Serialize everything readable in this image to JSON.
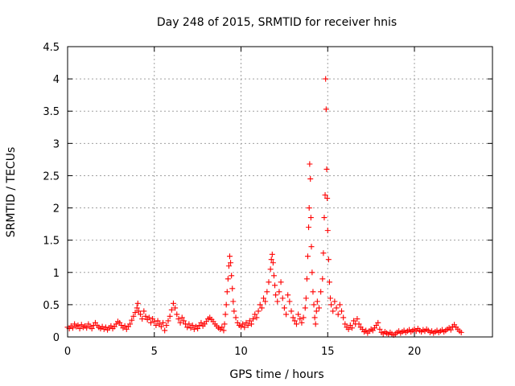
{
  "chart_data": {
    "type": "scatter",
    "title": "Day 248 of 2015, SRMTID for receiver hnis",
    "xlabel": "GPS time / hours",
    "ylabel": "SRMTID / TECUs",
    "xlim": [
      0,
      24.5
    ],
    "ylim": [
      0,
      4.5
    ],
    "xticks": [
      "0",
      "5",
      "10",
      "15",
      "20"
    ],
    "xtick_values": [
      0,
      5,
      10,
      15,
      20
    ],
    "yticks": [
      "0",
      "0.5",
      "1",
      "1.5",
      "2",
      "2.5",
      "3",
      "3.5",
      "4",
      "4.5"
    ],
    "ytick_values": [
      0,
      0.5,
      1,
      1.5,
      2,
      2.5,
      3,
      3.5,
      4,
      4.5
    ],
    "grid": true,
    "marker": "+",
    "series": [
      {
        "name": "SRMTID",
        "color": "#ff0000",
        "points": [
          [
            0.0,
            0.15
          ],
          [
            0.1,
            0.13
          ],
          [
            0.2,
            0.17
          ],
          [
            0.3,
            0.14
          ],
          [
            0.4,
            0.2
          ],
          [
            0.5,
            0.16
          ],
          [
            0.6,
            0.18
          ],
          [
            0.7,
            0.13
          ],
          [
            0.8,
            0.19
          ],
          [
            0.9,
            0.15
          ],
          [
            1.0,
            0.17
          ],
          [
            1.1,
            0.14
          ],
          [
            1.2,
            0.2
          ],
          [
            1.3,
            0.16
          ],
          [
            1.4,
            0.13
          ],
          [
            1.5,
            0.18
          ],
          [
            1.6,
            0.22
          ],
          [
            1.7,
            0.18
          ],
          [
            1.8,
            0.15
          ],
          [
            1.9,
            0.13
          ],
          [
            2.0,
            0.16
          ],
          [
            2.1,
            0.12
          ],
          [
            2.2,
            0.15
          ],
          [
            2.3,
            0.11
          ],
          [
            2.4,
            0.14
          ],
          [
            2.5,
            0.17
          ],
          [
            2.6,
            0.13
          ],
          [
            2.7,
            0.16
          ],
          [
            2.8,
            0.2
          ],
          [
            2.9,
            0.24
          ],
          [
            3.0,
            0.22
          ],
          [
            3.1,
            0.18
          ],
          [
            3.2,
            0.14
          ],
          [
            3.3,
            0.17
          ],
          [
            3.4,
            0.12
          ],
          [
            3.5,
            0.16
          ],
          [
            3.6,
            0.2
          ],
          [
            3.7,
            0.26
          ],
          [
            3.8,
            0.32
          ],
          [
            3.9,
            0.38
          ],
          [
            4.0,
            0.45
          ],
          [
            4.05,
            0.52
          ],
          [
            4.1,
            0.4
          ],
          [
            4.2,
            0.35
          ],
          [
            4.3,
            0.28
          ],
          [
            4.4,
            0.4
          ],
          [
            4.5,
            0.32
          ],
          [
            4.6,
            0.27
          ],
          [
            4.7,
            0.3
          ],
          [
            4.8,
            0.22
          ],
          [
            4.9,
            0.28
          ],
          [
            5.0,
            0.24
          ],
          [
            5.1,
            0.18
          ],
          [
            5.2,
            0.25
          ],
          [
            5.3,
            0.2
          ],
          [
            5.4,
            0.16
          ],
          [
            5.5,
            0.22
          ],
          [
            5.6,
            0.1
          ],
          [
            5.7,
            0.18
          ],
          [
            5.8,
            0.25
          ],
          [
            5.9,
            0.32
          ],
          [
            6.0,
            0.42
          ],
          [
            6.1,
            0.52
          ],
          [
            6.2,
            0.45
          ],
          [
            6.3,
            0.35
          ],
          [
            6.4,
            0.28
          ],
          [
            6.5,
            0.22
          ],
          [
            6.6,
            0.3
          ],
          [
            6.7,
            0.25
          ],
          [
            6.8,
            0.2
          ],
          [
            6.9,
            0.15
          ],
          [
            7.0,
            0.2
          ],
          [
            7.1,
            0.14
          ],
          [
            7.2,
            0.18
          ],
          [
            7.3,
            0.12
          ],
          [
            7.4,
            0.16
          ],
          [
            7.5,
            0.13
          ],
          [
            7.6,
            0.18
          ],
          [
            7.7,
            0.22
          ],
          [
            7.8,
            0.17
          ],
          [
            7.9,
            0.2
          ],
          [
            8.0,
            0.24
          ],
          [
            8.1,
            0.28
          ],
          [
            8.2,
            0.3
          ],
          [
            8.3,
            0.27
          ],
          [
            8.4,
            0.24
          ],
          [
            8.5,
            0.2
          ],
          [
            8.6,
            0.17
          ],
          [
            8.7,
            0.14
          ],
          [
            8.8,
            0.12
          ],
          [
            8.9,
            0.15
          ],
          [
            9.0,
            0.1
          ],
          [
            9.05,
            0.2
          ],
          [
            9.1,
            0.35
          ],
          [
            9.15,
            0.5
          ],
          [
            9.2,
            0.7
          ],
          [
            9.25,
            0.9
          ],
          [
            9.3,
            1.1
          ],
          [
            9.35,
            1.25
          ],
          [
            9.4,
            1.15
          ],
          [
            9.45,
            0.95
          ],
          [
            9.5,
            0.75
          ],
          [
            9.55,
            0.55
          ],
          [
            9.6,
            0.4
          ],
          [
            9.7,
            0.3
          ],
          [
            9.8,
            0.22
          ],
          [
            9.9,
            0.18
          ],
          [
            10.0,
            0.16
          ],
          [
            10.1,
            0.2
          ],
          [
            10.2,
            0.15
          ],
          [
            10.3,
            0.22
          ],
          [
            10.4,
            0.18
          ],
          [
            10.5,
            0.25
          ],
          [
            10.6,
            0.2
          ],
          [
            10.7,
            0.28
          ],
          [
            10.8,
            0.35
          ],
          [
            10.9,
            0.3
          ],
          [
            11.0,
            0.4
          ],
          [
            11.1,
            0.5
          ],
          [
            11.2,
            0.45
          ],
          [
            11.3,
            0.6
          ],
          [
            11.4,
            0.55
          ],
          [
            11.5,
            0.7
          ],
          [
            11.6,
            0.85
          ],
          [
            11.7,
            1.05
          ],
          [
            11.75,
            1.2
          ],
          [
            11.8,
            1.28
          ],
          [
            11.85,
            1.15
          ],
          [
            11.9,
            0.95
          ],
          [
            11.95,
            0.8
          ],
          [
            12.0,
            0.65
          ],
          [
            12.1,
            0.55
          ],
          [
            12.2,
            0.7
          ],
          [
            12.3,
            0.85
          ],
          [
            12.4,
            0.6
          ],
          [
            12.5,
            0.45
          ],
          [
            12.6,
            0.35
          ],
          [
            12.7,
            0.65
          ],
          [
            12.8,
            0.55
          ],
          [
            12.9,
            0.4
          ],
          [
            13.0,
            0.3
          ],
          [
            13.1,
            0.25
          ],
          [
            13.2,
            0.2
          ],
          [
            13.3,
            0.35
          ],
          [
            13.4,
            0.28
          ],
          [
            13.5,
            0.22
          ],
          [
            13.6,
            0.3
          ],
          [
            13.7,
            0.45
          ],
          [
            13.75,
            0.6
          ],
          [
            13.8,
            0.9
          ],
          [
            13.85,
            1.25
          ],
          [
            13.9,
            1.7
          ],
          [
            13.93,
            2.0
          ],
          [
            13.96,
            2.68
          ],
          [
            14.0,
            2.45
          ],
          [
            14.03,
            1.85
          ],
          [
            14.06,
            1.4
          ],
          [
            14.1,
            1.0
          ],
          [
            14.15,
            0.7
          ],
          [
            14.2,
            0.5
          ],
          [
            14.25,
            0.3
          ],
          [
            14.3,
            0.2
          ],
          [
            14.35,
            0.4
          ],
          [
            14.4,
            0.55
          ],
          [
            14.5,
            0.45
          ],
          [
            14.6,
            0.7
          ],
          [
            14.7,
            0.9
          ],
          [
            14.75,
            1.3
          ],
          [
            14.8,
            1.85
          ],
          [
            14.85,
            2.2
          ],
          [
            14.88,
            4.0
          ],
          [
            14.91,
            3.53
          ],
          [
            14.94,
            2.6
          ],
          [
            14.97,
            2.15
          ],
          [
            15.0,
            1.65
          ],
          [
            15.05,
            1.2
          ],
          [
            15.1,
            0.85
          ],
          [
            15.15,
            0.6
          ],
          [
            15.2,
            0.5
          ],
          [
            15.3,
            0.4
          ],
          [
            15.4,
            0.55
          ],
          [
            15.5,
            0.45
          ],
          [
            15.6,
            0.35
          ],
          [
            15.7,
            0.5
          ],
          [
            15.8,
            0.4
          ],
          [
            15.9,
            0.3
          ],
          [
            16.0,
            0.2
          ],
          [
            16.1,
            0.15
          ],
          [
            16.2,
            0.12
          ],
          [
            16.3,
            0.18
          ],
          [
            16.4,
            0.14
          ],
          [
            16.5,
            0.25
          ],
          [
            16.6,
            0.2
          ],
          [
            16.7,
            0.28
          ],
          [
            16.8,
            0.2
          ],
          [
            16.9,
            0.15
          ],
          [
            17.0,
            0.12
          ],
          [
            17.1,
            0.08
          ],
          [
            17.2,
            0.1
          ],
          [
            17.3,
            0.06
          ],
          [
            17.4,
            0.09
          ],
          [
            17.5,
            0.12
          ],
          [
            17.6,
            0.1
          ],
          [
            17.7,
            0.14
          ],
          [
            17.8,
            0.18
          ],
          [
            17.9,
            0.22
          ],
          [
            18.0,
            0.12
          ],
          [
            18.1,
            0.07
          ],
          [
            18.2,
            0.05
          ],
          [
            18.3,
            0.08
          ],
          [
            18.4,
            0.06
          ],
          [
            18.5,
            0.04
          ],
          [
            18.6,
            0.07
          ],
          [
            18.7,
            0.05
          ],
          [
            18.8,
            0.03
          ],
          [
            18.9,
            0.05
          ],
          [
            19.0,
            0.07
          ],
          [
            19.1,
            0.09
          ],
          [
            19.2,
            0.06
          ],
          [
            19.3,
            0.08
          ],
          [
            19.4,
            0.1
          ],
          [
            19.5,
            0.07
          ],
          [
            19.6,
            0.09
          ],
          [
            19.7,
            0.11
          ],
          [
            19.8,
            0.08
          ],
          [
            19.9,
            0.1
          ],
          [
            20.0,
            0.12
          ],
          [
            20.1,
            0.09
          ],
          [
            20.2,
            0.13
          ],
          [
            20.3,
            0.1
          ],
          [
            20.4,
            0.08
          ],
          [
            20.5,
            0.11
          ],
          [
            20.6,
            0.09
          ],
          [
            20.7,
            0.12
          ],
          [
            20.8,
            0.1
          ],
          [
            20.9,
            0.07
          ],
          [
            21.0,
            0.09
          ],
          [
            21.1,
            0.06
          ],
          [
            21.2,
            0.08
          ],
          [
            21.3,
            0.1
          ],
          [
            21.4,
            0.07
          ],
          [
            21.5,
            0.09
          ],
          [
            21.6,
            0.11
          ],
          [
            21.7,
            0.08
          ],
          [
            21.8,
            0.1
          ],
          [
            21.9,
            0.12
          ],
          [
            22.0,
            0.14
          ],
          [
            22.1,
            0.11
          ],
          [
            22.2,
            0.16
          ],
          [
            22.3,
            0.19
          ],
          [
            22.4,
            0.15
          ],
          [
            22.5,
            0.12
          ],
          [
            22.6,
            0.09
          ],
          [
            22.7,
            0.07
          ]
        ]
      }
    ]
  }
}
